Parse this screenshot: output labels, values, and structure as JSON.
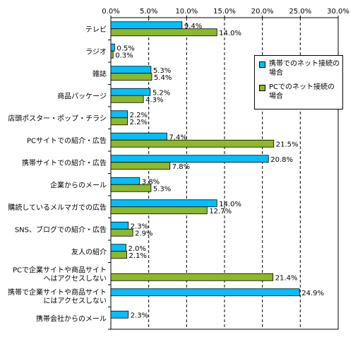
{
  "chart_data": {
    "type": "bar",
    "orientation": "horizontal",
    "categories": [
      "テレビ",
      "ラジオ",
      "雑誌",
      "商品パッケージ",
      "店頭ポスター・ポップ・チラシ",
      "PCサイトでの紹介・広告",
      "携帯サイトでの紹介・広告",
      "企業からのメール",
      "購読しているメルマガでの広告",
      "SNS、ブログでの紹介・広告",
      "友人の紹介",
      "PCで企業サイトや商品サイト\nへはアクセスしない",
      "携帯で企業サイトや商品サイト\nにはアクセスしない",
      "携帯会社からのメール"
    ],
    "series": [
      {
        "name": "携帯でのネット接続の場合",
        "color": "#00bfff",
        "values": [
          9.4,
          0.5,
          5.3,
          5.2,
          2.2,
          7.4,
          20.8,
          3.8,
          14.0,
          2.3,
          2.0,
          null,
          24.9,
          2.3
        ],
        "labels": [
          "9.4%",
          "0.5%",
          "5.3%",
          "5.2%",
          "2.2%",
          "7.4%",
          "20.8%",
          "3.8%",
          "14.0%",
          "2.3%",
          "2.0%",
          "",
          "24.9%",
          "2.3%"
        ]
      },
      {
        "name": "PCでのネット接続の場合",
        "color": "#8db82a",
        "values": [
          14.0,
          0.3,
          5.4,
          4.3,
          2.2,
          21.5,
          7.8,
          5.3,
          12.7,
          2.9,
          2.1,
          21.4,
          null,
          null
        ],
        "labels": [
          "14.0%",
          "0.3%",
          "5.4%",
          "4.3%",
          "2.2%",
          "21.5%",
          "7.8%",
          "5.3%",
          "12.7%",
          "2.9%",
          "2.1%",
          "21.4%",
          "",
          ""
        ]
      }
    ],
    "xlim": [
      0,
      30
    ],
    "xticks": [
      0,
      5,
      10,
      15,
      20,
      25,
      30
    ],
    "xtick_labels": [
      "0.0%",
      "5.0%",
      "10.0%",
      "15.0%",
      "20.0%",
      "25.0%",
      "30.0%"
    ],
    "grid": true,
    "legend_position": "right"
  },
  "legend": {
    "item1": "携帯でのネット接続の場合",
    "item2": "PCでのネット接続の場合",
    "color1": "#00bfff",
    "color2": "#8db82a"
  }
}
